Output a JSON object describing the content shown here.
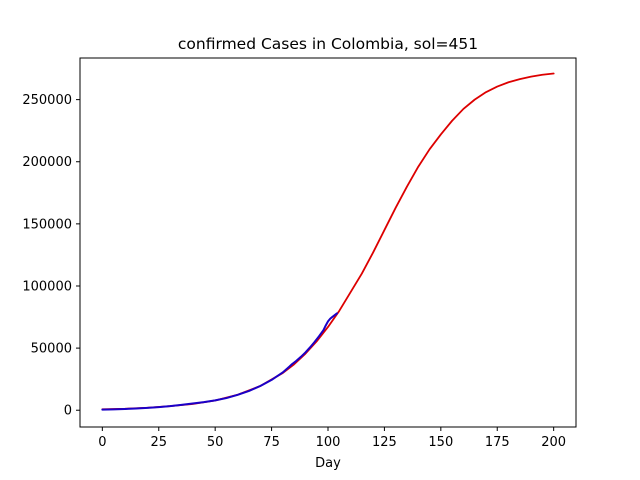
{
  "chart_data": {
    "type": "line",
    "title": "confirmed Cases in Colombia, sol=451",
    "xlabel": "Day",
    "ylabel": "",
    "xlim": [
      -9.9,
      209.9
    ],
    "ylim": [
      -13500,
      283500
    ],
    "xticks": [
      0,
      25,
      50,
      75,
      100,
      125,
      150,
      175,
      200
    ],
    "yticks": [
      0,
      50000,
      100000,
      150000,
      200000,
      250000
    ],
    "grid": false,
    "legend": "none",
    "series": [
      {
        "color": "#dd0000",
        "x": [
          0,
          10,
          20,
          30,
          40,
          50,
          60,
          70,
          80,
          85,
          90,
          95,
          100,
          105,
          110,
          115,
          120,
          125,
          130,
          135,
          140,
          145,
          150,
          155,
          160,
          165,
          170,
          175,
          180,
          185,
          190,
          195,
          200
        ],
        "y": [
          800,
          1200,
          2000,
          3300,
          5000,
          7800,
          12500,
          19500,
          30000,
          37000,
          45500,
          55500,
          67000,
          80000,
          95000,
          110000,
          127000,
          145000,
          163000,
          180000,
          196000,
          210000,
          222000,
          233000,
          242500,
          250000,
          256000,
          260500,
          264000,
          266500,
          268500,
          270000,
          271000
        ]
      },
      {
        "color": "#1a00c8",
        "x": [
          0,
          5,
          10,
          15,
          20,
          25,
          30,
          35,
          40,
          45,
          50,
          55,
          60,
          65,
          70,
          75,
          80,
          83,
          84,
          86,
          88,
          90,
          92,
          94,
          96,
          98,
          99,
          100,
          101,
          102,
          103,
          104
        ],
        "y": [
          500,
          700,
          1000,
          1400,
          1900,
          2500,
          3300,
          4300,
          5400,
          6500,
          7900,
          9800,
          12400,
          15500,
          19500,
          24400,
          30500,
          35300,
          37000,
          39800,
          43000,
          46500,
          50500,
          54800,
          59500,
          64500,
          68200,
          71500,
          73700,
          75200,
          76600,
          78000
        ]
      }
    ]
  }
}
